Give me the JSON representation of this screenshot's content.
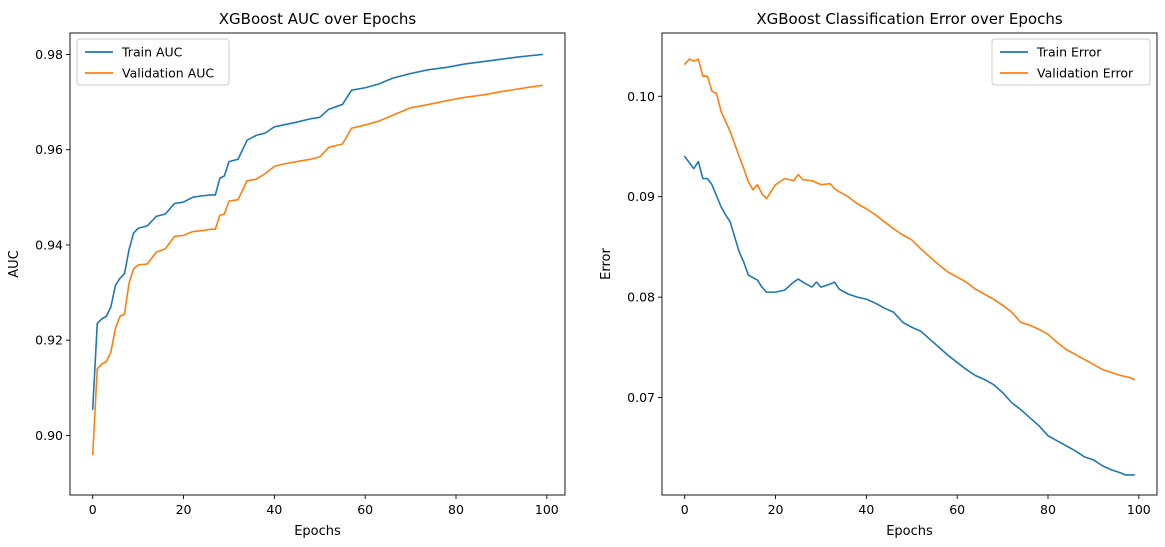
{
  "chart_data": [
    {
      "type": "line",
      "title": "XGBoost AUC over Epochs",
      "xlabel": "Epochs",
      "ylabel": "AUC",
      "xlim": [
        -5,
        104
      ],
      "ylim": [
        0.8875,
        0.9845
      ],
      "xticks": [
        0,
        20,
        40,
        60,
        80,
        100
      ],
      "yticks": [
        0.9,
        0.92,
        0.94,
        0.96,
        0.98
      ],
      "ytick_labels": [
        "0.90",
        "0.92",
        "0.94",
        "0.96",
        "0.98"
      ],
      "legend_position": "upper-left",
      "grid": false,
      "series": [
        {
          "name": "Train AUC",
          "color": "#1f77b4",
          "x": [
            0,
            1,
            2,
            3,
            4,
            5,
            6,
            7,
            8,
            9,
            10,
            12,
            14,
            16,
            18,
            20,
            22,
            24,
            26,
            27,
            28,
            29,
            30,
            32,
            34,
            36,
            38,
            40,
            42,
            45,
            48,
            50,
            52,
            55,
            57,
            60,
            63,
            66,
            70,
            74,
            78,
            82,
            86,
            90,
            94,
            96,
            99
          ],
          "y": [
            0.9055,
            0.9235,
            0.9245,
            0.925,
            0.927,
            0.9315,
            0.933,
            0.934,
            0.939,
            0.9425,
            0.9435,
            0.944,
            0.946,
            0.9465,
            0.9487,
            0.949,
            0.95,
            0.9503,
            0.9505,
            0.9505,
            0.954,
            0.9545,
            0.9575,
            0.958,
            0.962,
            0.963,
            0.9635,
            0.9648,
            0.9652,
            0.9658,
            0.9665,
            0.9668,
            0.9685,
            0.9695,
            0.9725,
            0.973,
            0.9738,
            0.975,
            0.976,
            0.9768,
            0.9773,
            0.978,
            0.9785,
            0.979,
            0.9795,
            0.9797,
            0.98
          ]
        },
        {
          "name": "Validation AUC",
          "color": "#ff7f0e",
          "x": [
            0,
            1,
            2,
            3,
            4,
            5,
            6,
            7,
            8,
            9,
            10,
            12,
            14,
            16,
            18,
            20,
            22,
            24,
            26,
            27,
            28,
            29,
            30,
            32,
            34,
            36,
            38,
            40,
            42,
            45,
            48,
            50,
            52,
            55,
            57,
            60,
            63,
            66,
            70,
            74,
            78,
            82,
            86,
            90,
            94,
            96,
            99
          ],
          "y": [
            0.896,
            0.914,
            0.915,
            0.9155,
            0.9175,
            0.9225,
            0.925,
            0.9255,
            0.932,
            0.935,
            0.9358,
            0.936,
            0.9385,
            0.9392,
            0.9418,
            0.942,
            0.9428,
            0.943,
            0.9433,
            0.9433,
            0.9462,
            0.9465,
            0.9492,
            0.9495,
            0.9535,
            0.9538,
            0.955,
            0.9565,
            0.957,
            0.9575,
            0.958,
            0.9585,
            0.9605,
            0.9612,
            0.9645,
            0.9652,
            0.966,
            0.9672,
            0.9688,
            0.9695,
            0.9703,
            0.971,
            0.9715,
            0.9722,
            0.9728,
            0.9731,
            0.9735
          ]
        }
      ]
    },
    {
      "type": "line",
      "title": "XGBoost Classification Error over Epochs",
      "xlabel": "Epochs",
      "ylabel": "Error",
      "xlim": [
        -5,
        104
      ],
      "ylim": [
        0.0603,
        0.1063
      ],
      "xticks": [
        0,
        20,
        40,
        60,
        80,
        100
      ],
      "yticks": [
        0.07,
        0.08,
        0.09,
        0.1
      ],
      "ytick_labels": [
        "0.07",
        "0.08",
        "0.09",
        "0.10"
      ],
      "legend_position": "upper-right",
      "grid": false,
      "series": [
        {
          "name": "Train Error",
          "color": "#1f77b4",
          "x": [
            0,
            2,
            3,
            4,
            5,
            6,
            8,
            9,
            10,
            12,
            13,
            14,
            16,
            17,
            18,
            20,
            22,
            24,
            25,
            26,
            28,
            29,
            30,
            32,
            33,
            34,
            36,
            38,
            40,
            42,
            44,
            46,
            48,
            50,
            52,
            54,
            56,
            58,
            60,
            62,
            64,
            66,
            68,
            70,
            72,
            74,
            76,
            78,
            80,
            82,
            84,
            86,
            88,
            90,
            92,
            94,
            96,
            97,
            99
          ],
          "y": [
            0.094,
            0.0928,
            0.0935,
            0.0918,
            0.0918,
            0.0912,
            0.089,
            0.0882,
            0.0875,
            0.0845,
            0.0835,
            0.0822,
            0.0817,
            0.081,
            0.0805,
            0.0805,
            0.0807,
            0.0815,
            0.0818,
            0.0815,
            0.081,
            0.0815,
            0.081,
            0.0813,
            0.0815,
            0.0808,
            0.0803,
            0.08,
            0.0798,
            0.0794,
            0.0789,
            0.0785,
            0.0775,
            0.077,
            0.0766,
            0.0758,
            0.075,
            0.0742,
            0.0735,
            0.0728,
            0.0722,
            0.0718,
            0.0713,
            0.0705,
            0.0695,
            0.0688,
            0.068,
            0.0672,
            0.0662,
            0.0657,
            0.0652,
            0.0647,
            0.0641,
            0.0638,
            0.0632,
            0.0628,
            0.0625,
            0.0623,
            0.0623
          ]
        },
        {
          "name": "Validation Error",
          "color": "#ff7f0e",
          "x": [
            0,
            1,
            2,
            3,
            4,
            5,
            6,
            7,
            8,
            9,
            10,
            12,
            13,
            14,
            15,
            16,
            17,
            18,
            19,
            20,
            22,
            24,
            25,
            26,
            28,
            30,
            32,
            33,
            34,
            36,
            38,
            40,
            42,
            44,
            46,
            48,
            50,
            52,
            54,
            56,
            58,
            60,
            62,
            64,
            66,
            68,
            70,
            72,
            74,
            76,
            78,
            80,
            82,
            84,
            86,
            88,
            90,
            92,
            94,
            96,
            98,
            99
          ],
          "y": [
            0.1032,
            0.1037,
            0.1035,
            0.1037,
            0.102,
            0.102,
            0.1005,
            0.1003,
            0.0985,
            0.0975,
            0.0965,
            0.094,
            0.0928,
            0.0915,
            0.0907,
            0.0912,
            0.0903,
            0.0898,
            0.0905,
            0.0912,
            0.0918,
            0.0916,
            0.0922,
            0.0917,
            0.0916,
            0.0912,
            0.0913,
            0.0908,
            0.0905,
            0.09,
            0.0893,
            0.0888,
            0.0882,
            0.0875,
            0.0868,
            0.0862,
            0.0857,
            0.0848,
            0.084,
            0.0832,
            0.0825,
            0.082,
            0.0815,
            0.0808,
            0.0803,
            0.0798,
            0.0792,
            0.0785,
            0.0775,
            0.0772,
            0.0768,
            0.0763,
            0.0755,
            0.0748,
            0.0743,
            0.0738,
            0.0733,
            0.0728,
            0.0725,
            0.0722,
            0.072,
            0.0718
          ]
        }
      ]
    }
  ]
}
